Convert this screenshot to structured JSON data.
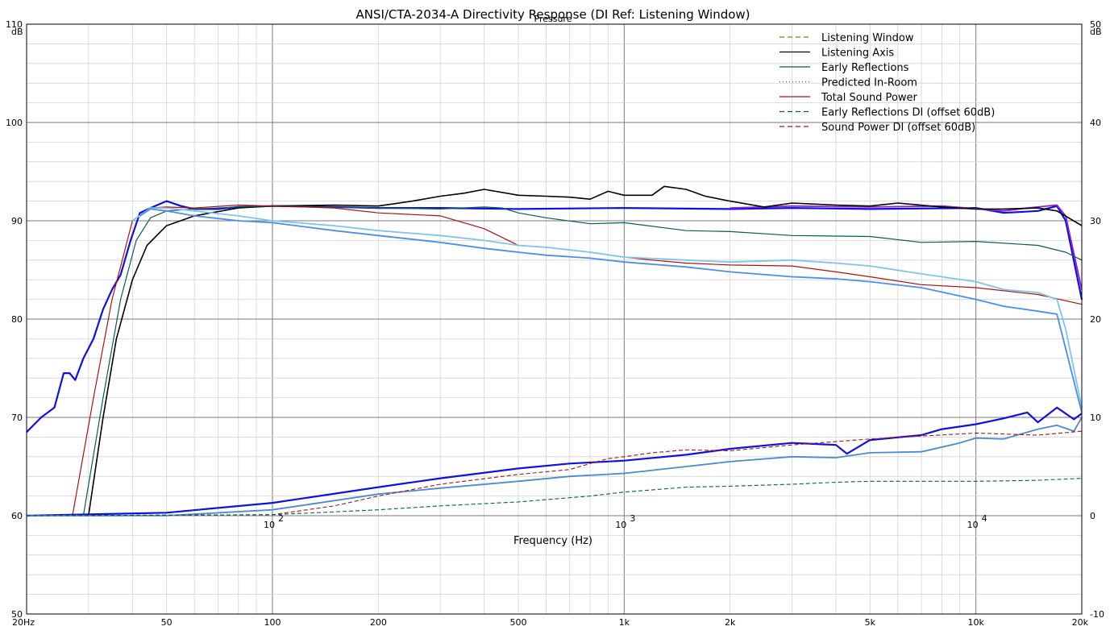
{
  "chart_data": {
    "type": "line",
    "title": "ANSI/CTA-2034-A Directivity Response (DI Ref: Listening Window)",
    "overlay_text": "Pressure",
    "xlabel": "Frequency (Hz)",
    "x_scale": "log",
    "xlim": [
      20,
      20000
    ],
    "ylim": [
      50,
      110
    ],
    "y2lim": [
      -10,
      50
    ],
    "y_unit": "dB",
    "y2_unit": "dB",
    "grid": true,
    "legend_position": "top-right",
    "x_ticks_bottom": [
      "20Hz",
      "50",
      "100",
      "200",
      "500",
      "1k",
      "2k",
      "5k",
      "10k",
      "20k"
    ],
    "x_ticks_bottom_values": [
      20,
      50,
      100,
      200,
      500,
      1000,
      2000,
      5000,
      10000,
      20000
    ],
    "x_ticks_inner": [
      {
        "base": "10",
        "exp": "2",
        "value": 100
      },
      {
        "base": "10",
        "exp": "3",
        "value": 1000
      },
      {
        "base": "10",
        "exp": "4",
        "value": 10000
      }
    ],
    "y_ticks_left": [
      "110",
      "100",
      "90",
      "80",
      "70",
      "60",
      "50"
    ],
    "y_ticks_left_values": [
      110,
      100,
      90,
      80,
      70,
      60,
      50
    ],
    "y_ticks_right": [
      "50",
      "40",
      "30",
      "20",
      "10",
      "0",
      "-10"
    ],
    "y_ticks_right_values": [
      50,
      40,
      30,
      20,
      10,
      0,
      -10
    ],
    "legend": [
      {
        "name": "Listening Window",
        "color": "#808000",
        "dash": "6,4"
      },
      {
        "name": "Listening Axis",
        "color": "#000000",
        "dash": ""
      },
      {
        "name": "Early Reflections",
        "color": "#0a5a5a",
        "dash": ""
      },
      {
        "name": "Predicted In-Room",
        "color": "#606060",
        "dash": "1,3"
      },
      {
        "name": "Total Sound Power",
        "color": "#b01010",
        "dash": ""
      },
      {
        "name": "Early Reflections DI (offset 60dB)",
        "color": "#0a5a5a",
        "dash": "6,4"
      },
      {
        "name": "Sound Power DI (offset 60dB)",
        "color": "#b01010",
        "dash": "6,4"
      }
    ],
    "series": [
      {
        "color": "#1010e0",
        "width": 2.2,
        "points": [
          [
            20,
            68.5
          ],
          [
            22,
            70
          ],
          [
            24,
            71
          ],
          [
            25.5,
            74.5
          ],
          [
            26.5,
            74.5
          ],
          [
            27.5,
            73.8
          ],
          [
            29,
            76
          ],
          [
            31,
            78
          ],
          [
            33,
            81
          ],
          [
            35,
            83
          ],
          [
            37,
            84.5
          ],
          [
            39.5,
            88
          ],
          [
            42,
            90.8
          ],
          [
            45,
            91.3
          ],
          [
            50,
            92
          ],
          [
            55,
            91.5
          ],
          [
            60,
            91.2
          ],
          [
            70,
            91.2
          ],
          [
            80,
            91.4
          ],
          [
            100,
            91.5
          ],
          [
            150,
            91.4
          ],
          [
            200,
            91.3
          ],
          [
            300,
            91.3
          ],
          [
            500,
            91.2
          ],
          [
            1000,
            91.3
          ],
          [
            2000,
            91.2
          ],
          [
            3000,
            91.3
          ],
          [
            5000,
            91.2
          ],
          [
            10000,
            91.3
          ],
          [
            12000,
            90.8
          ],
          [
            15000,
            91
          ],
          [
            17000,
            91.5
          ],
          [
            18000,
            90
          ],
          [
            20000,
            82
          ]
        ]
      },
      {
        "color": "#9020d0",
        "width": 1.8,
        "points": [
          [
            2000,
            91.3
          ],
          [
            3000,
            91.5
          ],
          [
            5000,
            91.4
          ],
          [
            8000,
            91.5
          ],
          [
            12000,
            91
          ],
          [
            14000,
            91.3
          ],
          [
            17000,
            91.6
          ],
          [
            18000,
            90.5
          ],
          [
            20000,
            83
          ]
        ]
      },
      {
        "color": "#000000",
        "width": 1.6,
        "points": [
          [
            30,
            60
          ],
          [
            33,
            70
          ],
          [
            36,
            78
          ],
          [
            40,
            84
          ],
          [
            44,
            87.5
          ],
          [
            50,
            89.5
          ],
          [
            60,
            90.5
          ],
          [
            80,
            91.3
          ],
          [
            100,
            91.5
          ],
          [
            150,
            91.6
          ],
          [
            200,
            91.5
          ],
          [
            250,
            92
          ],
          [
            300,
            92.5
          ],
          [
            350,
            92.8
          ],
          [
            400,
            93.2
          ],
          [
            500,
            92.6
          ],
          [
            600,
            92.5
          ],
          [
            700,
            92.4
          ],
          [
            800,
            92.2
          ],
          [
            900,
            93
          ],
          [
            1000,
            92.6
          ],
          [
            1200,
            92.6
          ],
          [
            1300,
            93.5
          ],
          [
            1500,
            93.2
          ],
          [
            1700,
            92.5
          ],
          [
            2000,
            92
          ],
          [
            2500,
            91.4
          ],
          [
            3000,
            91.8
          ],
          [
            4000,
            91.6
          ],
          [
            5000,
            91.5
          ],
          [
            6000,
            91.8
          ],
          [
            8000,
            91.4
          ],
          [
            10000,
            91.2
          ],
          [
            12000,
            91.2
          ],
          [
            15000,
            91.3
          ],
          [
            17000,
            91
          ],
          [
            20000,
            89.5
          ]
        ]
      },
      {
        "color": "#0a5a5a",
        "width": 1.2,
        "points": [
          [
            29,
            60
          ],
          [
            33,
            72
          ],
          [
            37,
            82
          ],
          [
            41,
            88
          ],
          [
            45,
            90.3
          ],
          [
            50,
            91
          ],
          [
            60,
            91.2
          ],
          [
            80,
            91.4
          ],
          [
            100,
            91.5
          ],
          [
            200,
            91.3
          ],
          [
            300,
            91.2
          ],
          [
            400,
            91.4
          ],
          [
            450,
            91.3
          ],
          [
            500,
            90.8
          ],
          [
            600,
            90.3
          ],
          [
            800,
            89.7
          ],
          [
            1000,
            89.8
          ],
          [
            1500,
            89
          ],
          [
            2000,
            88.9
          ],
          [
            3000,
            88.5
          ],
          [
            5000,
            88.4
          ],
          [
            7000,
            87.8
          ],
          [
            10000,
            87.9
          ],
          [
            15000,
            87.5
          ],
          [
            18000,
            86.8
          ],
          [
            20000,
            86
          ]
        ]
      },
      {
        "color": "#b01010",
        "width": 1.2,
        "points": [
          [
            27,
            60
          ],
          [
            31,
            72
          ],
          [
            35,
            82
          ],
          [
            40,
            90
          ],
          [
            45,
            91.3
          ],
          [
            50,
            91.4
          ],
          [
            60,
            91.3
          ],
          [
            80,
            91.6
          ],
          [
            100,
            91.5
          ],
          [
            150,
            91.3
          ],
          [
            200,
            90.8
          ],
          [
            300,
            90.5
          ],
          [
            400,
            89.2
          ],
          [
            500,
            87.5
          ],
          [
            600,
            87.3
          ],
          [
            800,
            86.8
          ],
          [
            1000,
            86.3
          ],
          [
            1200,
            86
          ],
          [
            1500,
            85.7
          ],
          [
            2000,
            85.5
          ],
          [
            3000,
            85.4
          ],
          [
            4000,
            84.8
          ],
          [
            5000,
            84.3
          ],
          [
            7000,
            83.5
          ],
          [
            10000,
            83.2
          ],
          [
            15000,
            82.5
          ],
          [
            20000,
            81.5
          ]
        ]
      },
      {
        "color": "#7fc4ec",
        "width": 1.8,
        "points": [
          [
            40,
            90
          ],
          [
            45,
            91.3
          ],
          [
            50,
            91.3
          ],
          [
            60,
            91
          ],
          [
            80,
            90.5
          ],
          [
            100,
            90
          ],
          [
            150,
            89.5
          ],
          [
            200,
            89
          ],
          [
            300,
            88.5
          ],
          [
            400,
            88
          ],
          [
            500,
            87.5
          ],
          [
            600,
            87.3
          ],
          [
            800,
            86.8
          ],
          [
            1000,
            86.3
          ],
          [
            1500,
            86
          ],
          [
            2000,
            85.8
          ],
          [
            3000,
            86
          ],
          [
            4000,
            85.7
          ],
          [
            5000,
            85.4
          ],
          [
            7000,
            84.6
          ],
          [
            10000,
            83.8
          ],
          [
            12000,
            83
          ],
          [
            15000,
            82.7
          ],
          [
            17000,
            82
          ],
          [
            18000,
            79
          ],
          [
            20000,
            71
          ]
        ]
      },
      {
        "color": "#4a8ef0",
        "width": 1.8,
        "points": [
          [
            42,
            90.5
          ],
          [
            45,
            91.2
          ],
          [
            50,
            91
          ],
          [
            60,
            90.5
          ],
          [
            80,
            90
          ],
          [
            100,
            89.8
          ],
          [
            150,
            89
          ],
          [
            200,
            88.5
          ],
          [
            300,
            87.8
          ],
          [
            400,
            87.2
          ],
          [
            500,
            86.8
          ],
          [
            600,
            86.5
          ],
          [
            800,
            86.2
          ],
          [
            1000,
            85.8
          ],
          [
            1500,
            85.3
          ],
          [
            2000,
            84.8
          ],
          [
            3000,
            84.3
          ],
          [
            4000,
            84.1
          ],
          [
            5000,
            83.8
          ],
          [
            7000,
            83.2
          ],
          [
            10000,
            82
          ],
          [
            12000,
            81.3
          ],
          [
            15000,
            80.8
          ],
          [
            17000,
            80.5
          ],
          [
            18000,
            77
          ],
          [
            20000,
            70.5
          ]
        ]
      },
      {
        "color": "#1010e0",
        "width": 2.2,
        "points": [
          [
            20,
            60
          ],
          [
            50,
            60.3
          ],
          [
            100,
            61.3
          ],
          [
            200,
            62.9
          ],
          [
            300,
            63.8
          ],
          [
            500,
            64.8
          ],
          [
            700,
            65.3
          ],
          [
            1000,
            65.6
          ],
          [
            1500,
            66.2
          ],
          [
            2000,
            66.8
          ],
          [
            3000,
            67.4
          ],
          [
            4000,
            67.2
          ],
          [
            4300,
            66.3
          ],
          [
            5000,
            67.7
          ],
          [
            7000,
            68.2
          ],
          [
            8000,
            68.8
          ],
          [
            10000,
            69.3
          ],
          [
            12000,
            69.9
          ],
          [
            14000,
            70.5
          ],
          [
            15000,
            69.5
          ],
          [
            17000,
            71
          ],
          [
            19000,
            69.8
          ],
          [
            20000,
            70.4
          ]
        ]
      },
      {
        "color": "#4a8ad0",
        "width": 1.8,
        "points": [
          [
            20,
            60
          ],
          [
            50,
            60
          ],
          [
            100,
            60.6
          ],
          [
            200,
            62.2
          ],
          [
            300,
            62.8
          ],
          [
            500,
            63.5
          ],
          [
            700,
            64
          ],
          [
            1000,
            64.3
          ],
          [
            1500,
            65
          ],
          [
            2000,
            65.5
          ],
          [
            3000,
            66
          ],
          [
            4000,
            65.9
          ],
          [
            5000,
            66.4
          ],
          [
            7000,
            66.5
          ],
          [
            9000,
            67.4
          ],
          [
            10000,
            67.9
          ],
          [
            12000,
            67.8
          ],
          [
            15000,
            68.8
          ],
          [
            17000,
            69.2
          ],
          [
            19000,
            68.6
          ],
          [
            20000,
            70
          ]
        ]
      },
      {
        "color": "#b01010",
        "width": 1.1,
        "dash": "5,3",
        "points": [
          [
            20,
            60
          ],
          [
            100,
            60.1
          ],
          [
            150,
            61
          ],
          [
            200,
            62
          ],
          [
            300,
            63.2
          ],
          [
            500,
            64.2
          ],
          [
            700,
            64.7
          ],
          [
            800,
            65.3
          ],
          [
            900,
            65.8
          ],
          [
            1000,
            66
          ],
          [
            1200,
            66.4
          ],
          [
            1500,
            66.7
          ],
          [
            2000,
            66.6
          ],
          [
            3000,
            67.2
          ],
          [
            5000,
            67.8
          ],
          [
            7000,
            68.1
          ],
          [
            10000,
            68.4
          ],
          [
            15000,
            68.2
          ],
          [
            20000,
            68.6
          ]
        ]
      },
      {
        "color": "#0a5a5a",
        "width": 1.1,
        "dash": "5,3",
        "points": [
          [
            20,
            60
          ],
          [
            100,
            60.1
          ],
          [
            200,
            60.6
          ],
          [
            300,
            61
          ],
          [
            500,
            61.4
          ],
          [
            800,
            62
          ],
          [
            1000,
            62.4
          ],
          [
            1500,
            62.9
          ],
          [
            2000,
            63
          ],
          [
            3000,
            63.2
          ],
          [
            4000,
            63.4
          ],
          [
            5000,
            63.5
          ],
          [
            10000,
            63.5
          ],
          [
            15000,
            63.6
          ],
          [
            20000,
            63.8
          ]
        ]
      }
    ]
  }
}
